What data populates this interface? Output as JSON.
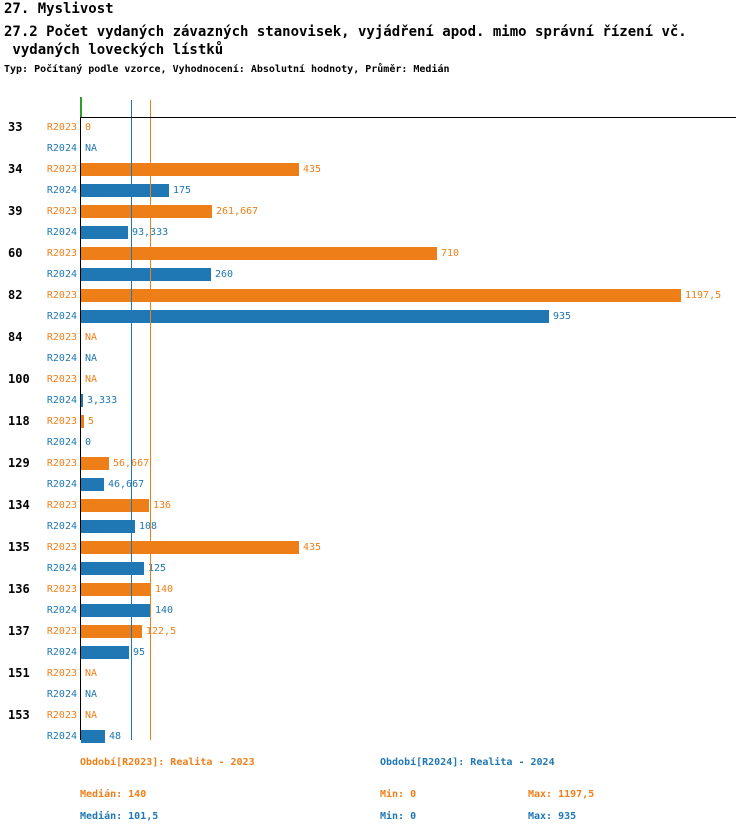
{
  "colors": {
    "r2023": "#ee7f18",
    "r2024": "#1f77b4",
    "axis": "#000000",
    "zero_tick": "#2ca02c",
    "text": "#000000"
  },
  "chart_data": {
    "type": "bar",
    "orientation": "horizontal",
    "title": "27. Myslivost",
    "subtitle_line1": "27.2 Počet vydaných závazných stanovisek, vyjádření apod. mimo správní řízení vč.",
    "subtitle_line2": " vydaných loveckých lístků",
    "meta": "Typ: Počítaný podle vzorce, Vyhodnocení: Absolutní hodnoty, Průměr: Medián",
    "x_min": 0,
    "x_max": 1197.5,
    "grid": false,
    "legend_position": "bottom",
    "categories": [
      "33",
      "34",
      "39",
      "60",
      "82",
      "84",
      "100",
      "118",
      "129",
      "134",
      "135",
      "136",
      "137",
      "151",
      "153"
    ],
    "series": [
      {
        "name": "R2023",
        "color": "#ee7f18",
        "values": [
          0,
          435,
          261.667,
          710,
          1197.5,
          null,
          null,
          5,
          56.667,
          136,
          435,
          140,
          122.5,
          null,
          null
        ],
        "labels": [
          "0",
          "435",
          "261,667",
          "710",
          "1197,5",
          "NA",
          "NA",
          "5",
          "56,667",
          "136",
          "435",
          "140",
          "122,5",
          "NA",
          "NA"
        ]
      },
      {
        "name": "R2024",
        "color": "#1f77b4",
        "values": [
          null,
          175,
          93.333,
          260,
          935,
          null,
          3.333,
          0,
          46.667,
          108,
          125,
          140,
          95,
          null,
          48
        ],
        "labels": [
          "NA",
          "175",
          "93,333",
          "260",
          "935",
          "NA",
          "3,333",
          "0",
          "46,667",
          "108",
          "125",
          "140",
          "95",
          "NA",
          "48"
        ]
      }
    ],
    "median_lines": [
      {
        "series": "R2023",
        "value": 140,
        "color": "#ee7f18"
      },
      {
        "series": "R2024",
        "value": 101.5,
        "color": "#1f77b4"
      }
    ],
    "legend": {
      "r2023": "Období[R2023]: Realita - 2023",
      "r2024": "Období[R2024]: Realita - 2024"
    },
    "stats": {
      "r2023_median": "Medián: 140",
      "r2023_min": "Min: 0",
      "r2023_max": "Max: 1197,5",
      "r2024_median": "Medián: 101,5",
      "r2024_min": "Min: 0",
      "r2024_max": "Max: 935"
    }
  }
}
